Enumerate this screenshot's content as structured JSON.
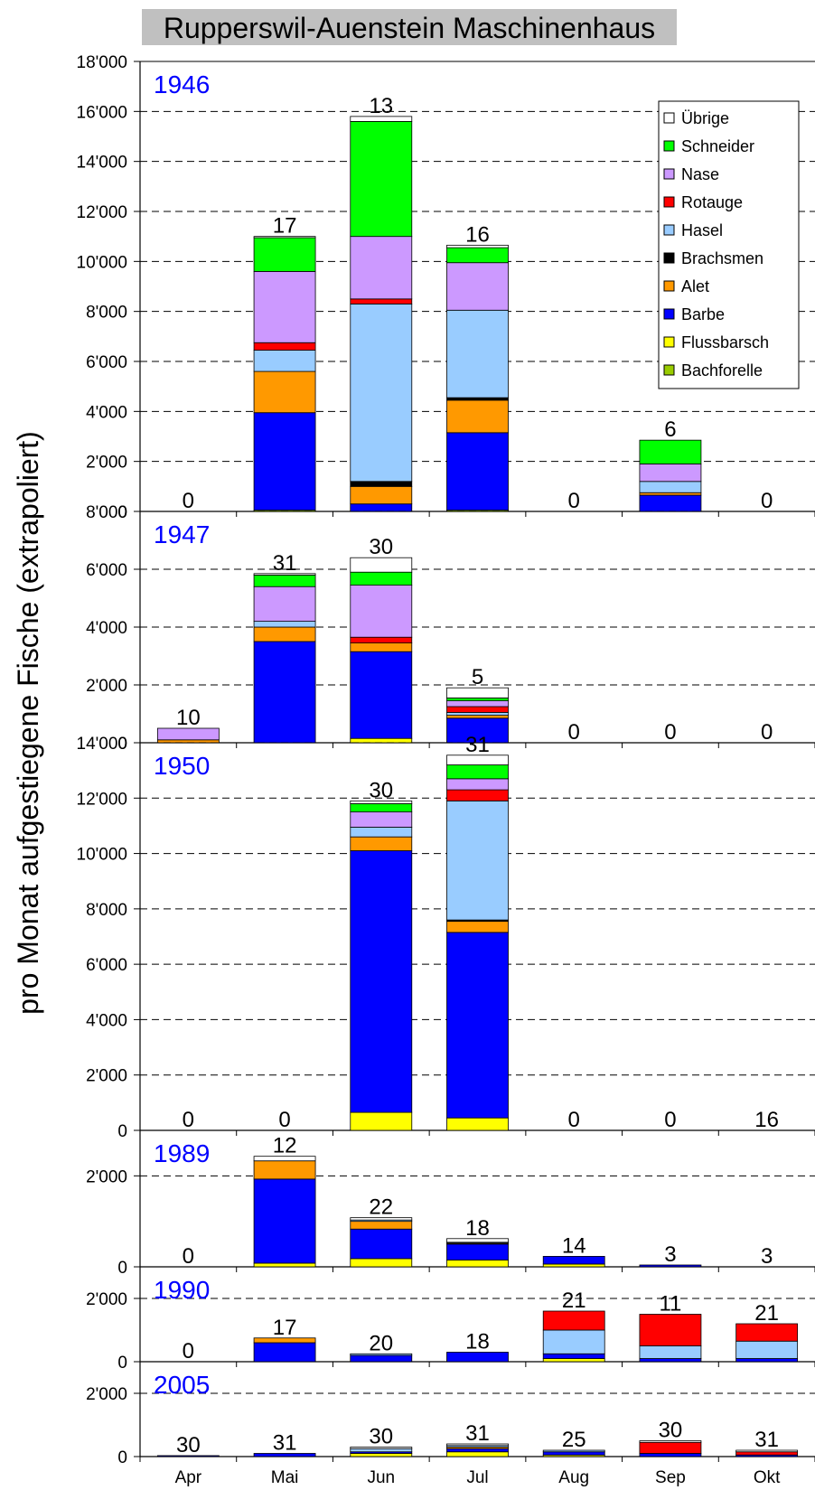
{
  "chart_data": {
    "type": "bar",
    "stacked": true,
    "title": "Rupperswil-Auenstein Maschinenhaus",
    "ylabel": "pro Monat aufgestiegene Fische (extrapoliert)",
    "categories": [
      "Apr",
      "Mai",
      "Jun",
      "Jul",
      "Aug",
      "Sep",
      "Okt"
    ],
    "species": [
      "Bachforelle",
      "Flussbarsch",
      "Barbe",
      "Alet",
      "Brachsmen",
      "Hasel",
      "Rotauge",
      "Nase",
      "Schneider",
      "Übrige"
    ],
    "legend_order": [
      "Übrige",
      "Schneider",
      "Nase",
      "Rotauge",
      "Hasel",
      "Brachsmen",
      "Alet",
      "Barbe",
      "Flussbarsch",
      "Bachforelle"
    ],
    "colors": {
      "Bachforelle": "#99cc00",
      "Flussbarsch": "#ffff00",
      "Barbe": "#0000ff",
      "Alet": "#ff9900",
      "Brachsmen": "#000000",
      "Hasel": "#99ccff",
      "Rotauge": "#ff0000",
      "Nase": "#cc99ff",
      "Schneider": "#00ff00",
      "Übrige": "#ffffff"
    },
    "legend_position": "top-right (1946 panel)",
    "grid": true,
    "panels": [
      {
        "year": "1946",
        "ylim": [
          0,
          18000
        ],
        "ticks": [
          0,
          2000,
          4000,
          6000,
          8000,
          10000,
          12000,
          14000,
          16000,
          18000
        ],
        "tick_labels": [
          "0",
          "2'000",
          "4'000",
          "6'000",
          "8'000",
          "10'000",
          "12'000",
          "14'000",
          "16'000",
          "18'000"
        ],
        "counts": [
          "0",
          "17",
          "13",
          "16",
          "0",
          "6",
          "0"
        ],
        "values": {
          "Bachforelle": [
            0,
            50,
            0,
            50,
            0,
            0,
            0
          ],
          "Flussbarsch": [
            0,
            0,
            0,
            0,
            0,
            0,
            0
          ],
          "Barbe": [
            0,
            3900,
            300,
            3100,
            0,
            650,
            0
          ],
          "Alet": [
            0,
            1650,
            700,
            1300,
            0,
            100,
            0
          ],
          "Brachsmen": [
            0,
            0,
            200,
            100,
            0,
            0,
            0
          ],
          "Hasel": [
            0,
            850,
            7100,
            3500,
            0,
            450,
            0
          ],
          "Rotauge": [
            0,
            300,
            200,
            0,
            0,
            0,
            0
          ],
          "Nase": [
            0,
            2850,
            2500,
            1900,
            0,
            700,
            0
          ],
          "Schneider": [
            0,
            1350,
            4600,
            600,
            0,
            950,
            0
          ],
          "Übrige": [
            0,
            50,
            200,
            100,
            0,
            0,
            0
          ]
        }
      },
      {
        "year": "1947",
        "ylim": [
          0,
          8000
        ],
        "ticks": [
          0,
          2000,
          4000,
          6000,
          8000
        ],
        "tick_labels": [
          "0",
          "2'000",
          "4'000",
          "6'000",
          "8'000"
        ],
        "counts": [
          "10",
          "31",
          "30",
          "5",
          "0",
          "0",
          "0"
        ],
        "values": {
          "Bachforelle": [
            0,
            0,
            0,
            0,
            0,
            0,
            0
          ],
          "Flussbarsch": [
            0,
            0,
            150,
            0,
            0,
            0,
            0
          ],
          "Barbe": [
            0,
            3500,
            3000,
            850,
            0,
            0,
            0
          ],
          "Alet": [
            100,
            500,
            300,
            100,
            0,
            0,
            0
          ],
          "Brachsmen": [
            0,
            0,
            0,
            0,
            0,
            0,
            0
          ],
          "Hasel": [
            0,
            200,
            0,
            100,
            0,
            0,
            0
          ],
          "Rotauge": [
            0,
            0,
            200,
            200,
            0,
            0,
            0
          ],
          "Nase": [
            400,
            1200,
            1800,
            200,
            0,
            0,
            0
          ],
          "Schneider": [
            0,
            400,
            450,
            100,
            0,
            0,
            0
          ],
          "Übrige": [
            0,
            50,
            500,
            350,
            0,
            0,
            0
          ]
        }
      },
      {
        "year": "1950",
        "ylim": [
          0,
          14000
        ],
        "ticks": [
          0,
          2000,
          4000,
          6000,
          8000,
          10000,
          12000,
          14000
        ],
        "tick_labels": [
          "0",
          "2'000",
          "4'000",
          "6'000",
          "8'000",
          "10'000",
          "12'000",
          "14'000"
        ],
        "counts": [
          "0",
          "0",
          "30",
          "31",
          "0",
          "0",
          "16"
        ],
        "values": {
          "Bachforelle": [
            0,
            0,
            0,
            0,
            0,
            0,
            0
          ],
          "Flussbarsch": [
            0,
            0,
            650,
            450,
            0,
            0,
            0
          ],
          "Barbe": [
            0,
            0,
            9450,
            6700,
            0,
            0,
            0
          ],
          "Alet": [
            0,
            0,
            500,
            400,
            0,
            0,
            0
          ],
          "Brachsmen": [
            0,
            0,
            0,
            50,
            0,
            0,
            0
          ],
          "Hasel": [
            0,
            0,
            350,
            4300,
            0,
            0,
            0
          ],
          "Rotauge": [
            0,
            0,
            0,
            400,
            0,
            0,
            0
          ],
          "Nase": [
            0,
            0,
            550,
            400,
            0,
            0,
            0
          ],
          "Schneider": [
            0,
            0,
            300,
            500,
            0,
            0,
            0
          ],
          "Übrige": [
            0,
            0,
            100,
            350,
            0,
            0,
            0
          ]
        }
      },
      {
        "year": "1989",
        "ylim": [
          0,
          3000
        ],
        "ticks": [
          0,
          2000
        ],
        "tick_labels": [
          "0",
          "2'000"
        ],
        "counts": [
          "0",
          "12",
          "22",
          "18",
          "14",
          "3",
          "3"
        ],
        "values": {
          "Bachforelle": [
            0,
            0,
            0,
            0,
            0,
            0,
            0
          ],
          "Flussbarsch": [
            0,
            80,
            180,
            150,
            60,
            0,
            0
          ],
          "Barbe": [
            0,
            1850,
            650,
            350,
            170,
            40,
            0
          ],
          "Alet": [
            0,
            400,
            170,
            20,
            0,
            0,
            0
          ],
          "Brachsmen": [
            0,
            0,
            0,
            0,
            0,
            0,
            0
          ],
          "Hasel": [
            0,
            0,
            30,
            20,
            0,
            0,
            0
          ],
          "Rotauge": [
            0,
            0,
            0,
            0,
            0,
            0,
            0
          ],
          "Nase": [
            0,
            0,
            0,
            0,
            0,
            0,
            0
          ],
          "Schneider": [
            0,
            0,
            0,
            0,
            0,
            0,
            0
          ],
          "Übrige": [
            0,
            100,
            50,
            80,
            0,
            0,
            0
          ]
        }
      },
      {
        "year": "1990",
        "ylim": [
          0,
          3000
        ],
        "ticks": [
          0,
          2000
        ],
        "tick_labels": [
          "0",
          "2'000"
        ],
        "counts": [
          "0",
          "17",
          "20",
          "18",
          "21",
          "11",
          "21"
        ],
        "values": {
          "Bachforelle": [
            0,
            0,
            0,
            0,
            0,
            0,
            0
          ],
          "Flussbarsch": [
            0,
            0,
            0,
            0,
            100,
            0,
            0
          ],
          "Barbe": [
            0,
            600,
            200,
            300,
            150,
            100,
            100
          ],
          "Alet": [
            0,
            150,
            0,
            0,
            0,
            0,
            0
          ],
          "Brachsmen": [
            0,
            0,
            0,
            0,
            0,
            0,
            0
          ],
          "Hasel": [
            0,
            0,
            50,
            0,
            750,
            400,
            550
          ],
          "Rotauge": [
            0,
            0,
            0,
            0,
            600,
            1000,
            550
          ],
          "Nase": [
            0,
            0,
            0,
            0,
            0,
            0,
            0
          ],
          "Schneider": [
            0,
            0,
            0,
            0,
            0,
            0,
            0
          ],
          "Übrige": [
            0,
            0,
            0,
            0,
            0,
            0,
            0
          ]
        }
      },
      {
        "year": "2005",
        "ylim": [
          0,
          3000
        ],
        "ticks": [
          0,
          2000
        ],
        "tick_labels": [
          "0",
          "2'000"
        ],
        "counts": [
          "30",
          "31",
          "30",
          "31",
          "25",
          "30",
          "31"
        ],
        "values": {
          "Bachforelle": [
            0,
            0,
            0,
            0,
            0,
            0,
            0
          ],
          "Flussbarsch": [
            0,
            0,
            100,
            150,
            50,
            0,
            0
          ],
          "Barbe": [
            30,
            100,
            50,
            100,
            100,
            100,
            50
          ],
          "Alet": [
            0,
            0,
            0,
            50,
            0,
            0,
            0
          ],
          "Brachsmen": [
            0,
            0,
            0,
            0,
            0,
            0,
            0
          ],
          "Hasel": [
            0,
            0,
            100,
            50,
            50,
            0,
            0
          ],
          "Rotauge": [
            0,
            0,
            0,
            0,
            0,
            350,
            100
          ],
          "Nase": [
            0,
            0,
            0,
            0,
            0,
            0,
            0
          ],
          "Schneider": [
            0,
            0,
            0,
            0,
            0,
            0,
            0
          ],
          "Übrige": [
            0,
            0,
            50,
            50,
            0,
            50,
            50
          ]
        }
      }
    ]
  }
}
